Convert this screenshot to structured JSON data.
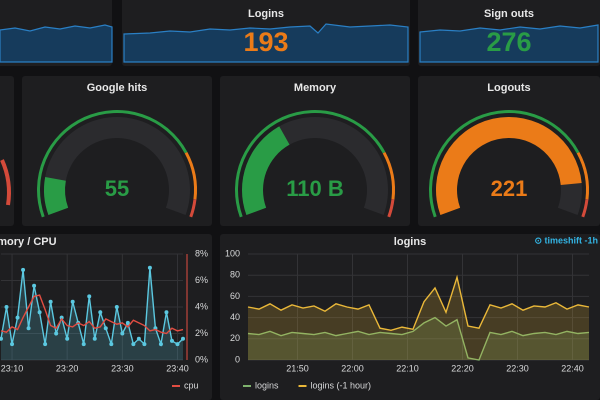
{
  "stats": [
    {
      "title": "Logins",
      "value": 193,
      "color": "#eb7b18"
    },
    {
      "title": "Sign outs",
      "value": 276,
      "color": "#299c46"
    }
  ],
  "gauges": [
    {
      "title": "Google hits",
      "value": 55,
      "max": 400,
      "color": "#299c46"
    },
    {
      "title": "Memory",
      "value": 110,
      "value_label": "110 B",
      "max": 300,
      "color": "#299c46"
    },
    {
      "title": "Logouts",
      "value": 221,
      "max": 250,
      "color": "#eb7b18"
    }
  ],
  "charts": [
    {
      "type": "line",
      "title": "Memory / CPU",
      "xlim": [
        0,
        33
      ],
      "xticks": [
        {
          "value": 2,
          "label": "23:10"
        },
        {
          "value": 12,
          "label": "23:20"
        },
        {
          "value": 22,
          "label": "23:30"
        },
        {
          "value": 32,
          "label": "23:40"
        }
      ],
      "ylim": [
        0,
        100
      ],
      "y2lim": [
        0,
        8
      ],
      "y2ticks": [
        {
          "value": 0,
          "label": "0%"
        },
        {
          "value": 2,
          "label": "2%"
        },
        {
          "value": 4,
          "label": "4%"
        },
        {
          "value": 6,
          "label": "6%"
        },
        {
          "value": 8,
          "label": "8%"
        }
      ],
      "grid": true,
      "series": [
        {
          "color": "#5bc8e0",
          "fill": true,
          "points": true,
          "x": [
            0,
            1,
            2,
            3,
            4,
            5,
            6,
            7,
            8,
            9,
            10,
            11,
            12,
            13,
            14,
            15,
            16,
            17,
            18,
            19,
            20,
            21,
            22,
            23,
            24,
            25,
            26,
            27,
            28,
            29,
            30,
            31,
            32,
            33
          ],
          "values": [
            20,
            50,
            15,
            40,
            85,
            30,
            70,
            45,
            15,
            55,
            25,
            40,
            20,
            55,
            35,
            15,
            60,
            20,
            45,
            30,
            15,
            50,
            25,
            35,
            15,
            20,
            15,
            87,
            30,
            15,
            45,
            18,
            15,
            20
          ]
        },
        {
          "name": "cpu",
          "color": "#e24d42",
          "axis": "y2",
          "x": [
            0,
            1,
            2,
            3,
            4,
            5,
            6,
            7,
            8,
            9,
            10,
            11,
            12,
            13,
            14,
            15,
            16,
            17,
            18,
            19,
            20,
            21,
            22,
            23,
            24,
            25,
            26,
            27,
            28,
            29,
            30,
            31,
            32,
            33
          ],
          "values": [
            2.2,
            2.1,
            2.5,
            2.3,
            3.2,
            4,
            4.8,
            4.9,
            3.8,
            2.6,
            2.4,
            3.1,
            2.6,
            2.5,
            2.8,
            2.6,
            2.9,
            2.4,
            2.5,
            3.1,
            2.9,
            2.7,
            2.8,
            2.5,
            3,
            2.8,
            2.6,
            2.2,
            2.3,
            2.1,
            2,
            2.4,
            2.2,
            2.3
          ]
        }
      ]
    },
    {
      "type": "line",
      "title": "logins",
      "annotation": "⊙ timeshift -1h",
      "xlim": [
        0,
        62
      ],
      "xticks": [
        {
          "value": 9,
          "label": "21:50"
        },
        {
          "value": 19,
          "label": "22:00"
        },
        {
          "value": 29,
          "label": "22:10"
        },
        {
          "value": 39,
          "label": "22:20"
        },
        {
          "value": 49,
          "label": "22:30"
        },
        {
          "value": 59,
          "label": "22:40"
        }
      ],
      "ylim": [
        0,
        100
      ],
      "yticks": [
        0,
        20,
        40,
        60,
        80,
        100
      ],
      "grid": true,
      "series": [
        {
          "name": "logins",
          "color": "#7eb26d",
          "fill": true,
          "x": [
            0,
            2,
            4,
            6,
            8,
            10,
            12,
            14,
            16,
            18,
            20,
            22,
            24,
            26,
            28,
            30,
            32,
            34,
            36,
            38,
            40,
            42,
            44,
            46,
            48,
            50,
            52,
            54,
            56,
            58,
            60,
            62
          ],
          "values": [
            25,
            24,
            27,
            23,
            26,
            25,
            24,
            26,
            23,
            25,
            27,
            24,
            26,
            25,
            24,
            27,
            35,
            40,
            32,
            38,
            2,
            0,
            26,
            24,
            27,
            23,
            25,
            26,
            24,
            27,
            25,
            26
          ]
        },
        {
          "name": "logins (-1 hour)",
          "color": "#eab839",
          "fill": true,
          "x": [
            0,
            2,
            4,
            6,
            8,
            10,
            12,
            14,
            16,
            18,
            20,
            22,
            24,
            26,
            28,
            30,
            32,
            34,
            36,
            38,
            40,
            42,
            44,
            46,
            48,
            50,
            52,
            54,
            56,
            58,
            60,
            62
          ],
          "values": [
            50,
            48,
            53,
            47,
            52,
            49,
            51,
            46,
            53,
            50,
            48,
            52,
            30,
            28,
            31,
            29,
            55,
            68,
            45,
            78,
            32,
            30,
            52,
            49,
            53,
            47,
            51,
            50,
            54,
            48,
            52,
            50
          ]
        }
      ]
    }
  ]
}
